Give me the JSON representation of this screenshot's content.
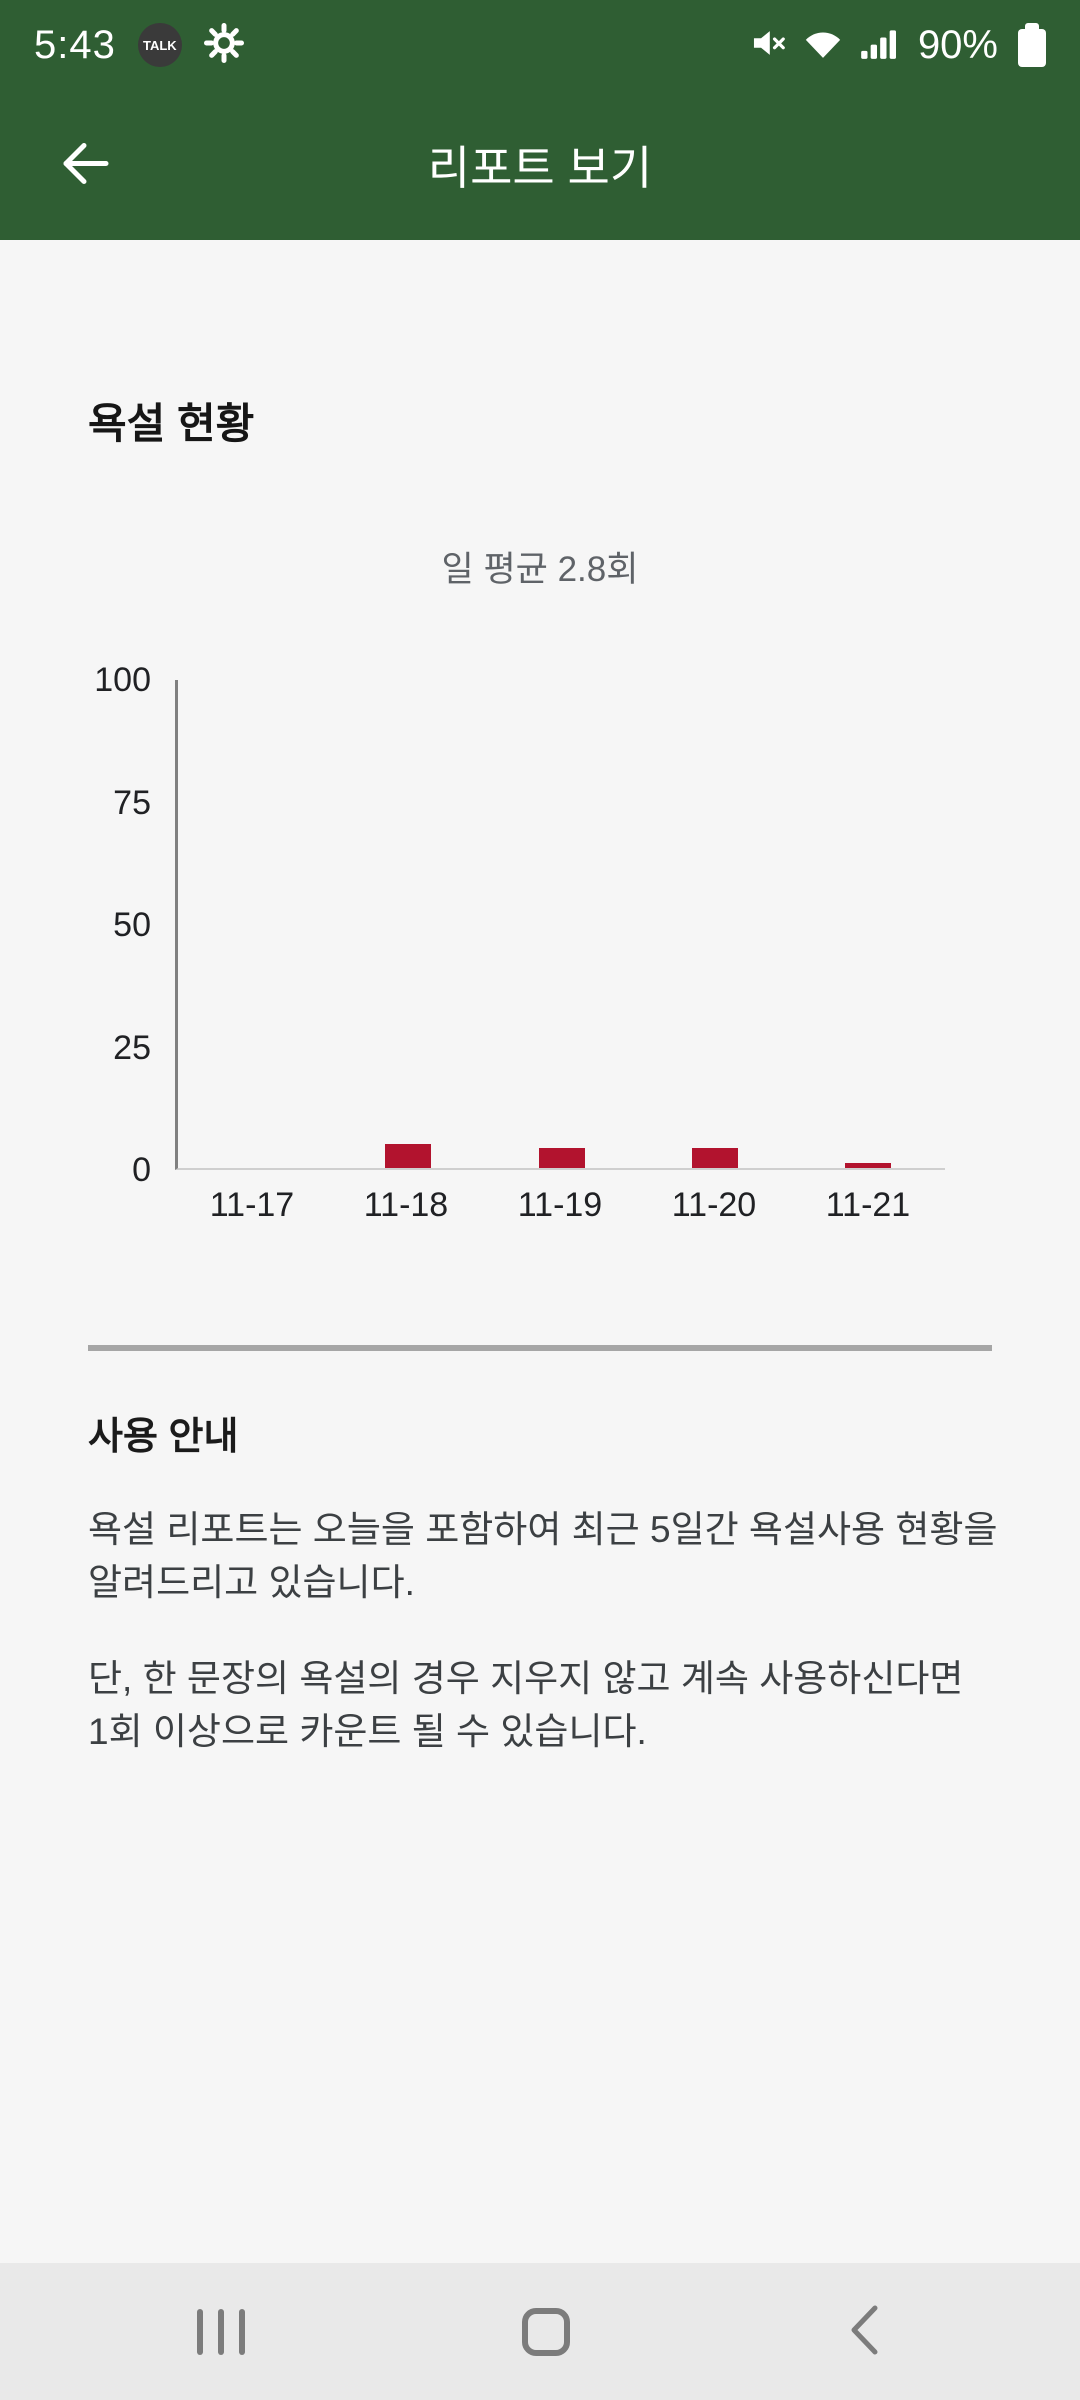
{
  "status_bar": {
    "time": "5:43",
    "talk_label": "TALK",
    "battery_percent": "90%"
  },
  "app_bar": {
    "title": "리포트 보기"
  },
  "report": {
    "section_title": "욕설 현황"
  },
  "chart_data": {
    "type": "bar",
    "title": "일 평균 2.8회",
    "categories": [
      "11-17",
      "11-18",
      "11-19",
      "11-20",
      "11-21"
    ],
    "values": [
      0,
      5,
      4,
      4,
      1
    ],
    "ylim": [
      0,
      100
    ],
    "yticks": [
      0,
      25,
      50,
      75,
      100
    ],
    "xlabel": "",
    "ylabel": "",
    "grid": false,
    "legend": false,
    "bar_color": "#b2132e"
  },
  "guide": {
    "title": "사용 안내",
    "paragraphs": [
      "욕설 리포트는 오늘을 포함하여 최근 5일간 욕설사용 현황을 알려드리고 있습니다.",
      "단, 한 문장의 욕설의 경우 지우지 않고 계속 사용하신다면 1회 이상으로 카운트 될 수 있습니다."
    ]
  },
  "colors": {
    "header_green": "#2f5e33",
    "background": "#f6f6f6",
    "nav_background": "#e9e9e9",
    "bar_red": "#b2132e",
    "divider_gray": "#a6a6a6"
  }
}
